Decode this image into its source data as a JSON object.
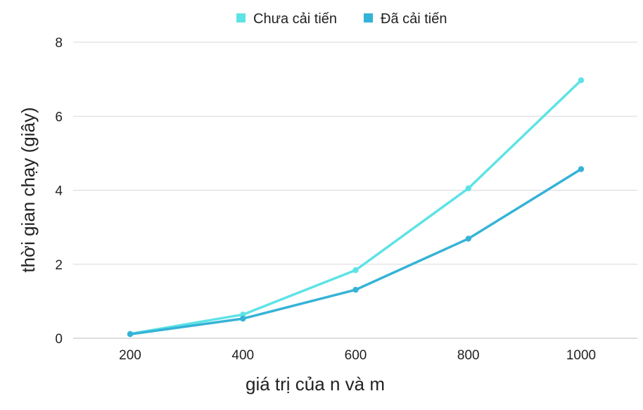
{
  "chart_data": {
    "type": "line",
    "title": "",
    "xlabel": "giá trị của n và m",
    "ylabel": "thời gian chạy (giây)",
    "x": [
      200,
      400,
      600,
      800,
      1000
    ],
    "x_tick_labels": [
      "200",
      "400",
      "600",
      "800",
      "1000"
    ],
    "y_tick_labels": [
      "0",
      "2",
      "4",
      "6",
      "8"
    ],
    "ylim": [
      0,
      8
    ],
    "grid": "horizontal",
    "legend_position": "top-center",
    "series": [
      {
        "name": "Chưa cải tiến",
        "color": "#5de3e6",
        "values": [
          0.12,
          0.64,
          1.84,
          4.05,
          6.97
        ]
      },
      {
        "name": "Đã cải tiến",
        "color": "#35b3d6",
        "values": [
          0.11,
          0.53,
          1.31,
          2.69,
          4.57
        ]
      }
    ]
  }
}
